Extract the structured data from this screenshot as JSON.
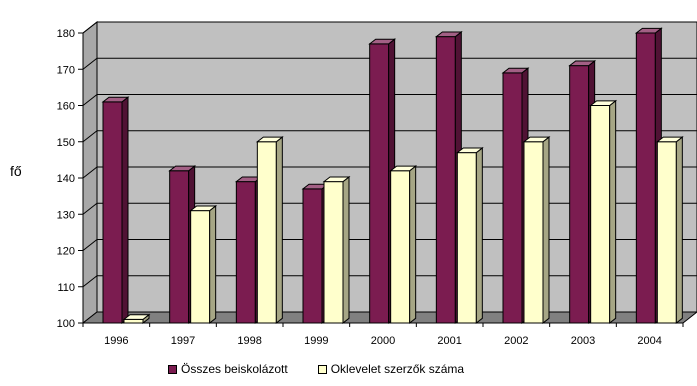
{
  "chart_data": {
    "type": "bar",
    "style": "3d-clustered-column",
    "title": "",
    "xlabel": "",
    "ylabel": "fő",
    "ylim": [
      100,
      180
    ],
    "yticks": [
      100,
      110,
      120,
      130,
      140,
      150,
      160,
      170,
      180
    ],
    "grid": true,
    "legend_position": "bottom",
    "categories": [
      "1996",
      "1997",
      "1998",
      "1999",
      "2000",
      "2001",
      "2002",
      "2003",
      "2004"
    ],
    "series": [
      {
        "name": "Összes beiskolázott",
        "color": "#7b1c50",
        "values": [
          161,
          142,
          139,
          137,
          177,
          179,
          169,
          171,
          180
        ]
      },
      {
        "name": "Oklevelet szerzők száma",
        "color": "#ffffcc",
        "values": [
          101,
          131,
          150,
          139,
          142,
          147,
          150,
          160,
          150
        ]
      }
    ],
    "colors": {
      "wall": "#c0c0c0",
      "floor": "#808080",
      "gridline": "#000000"
    }
  }
}
